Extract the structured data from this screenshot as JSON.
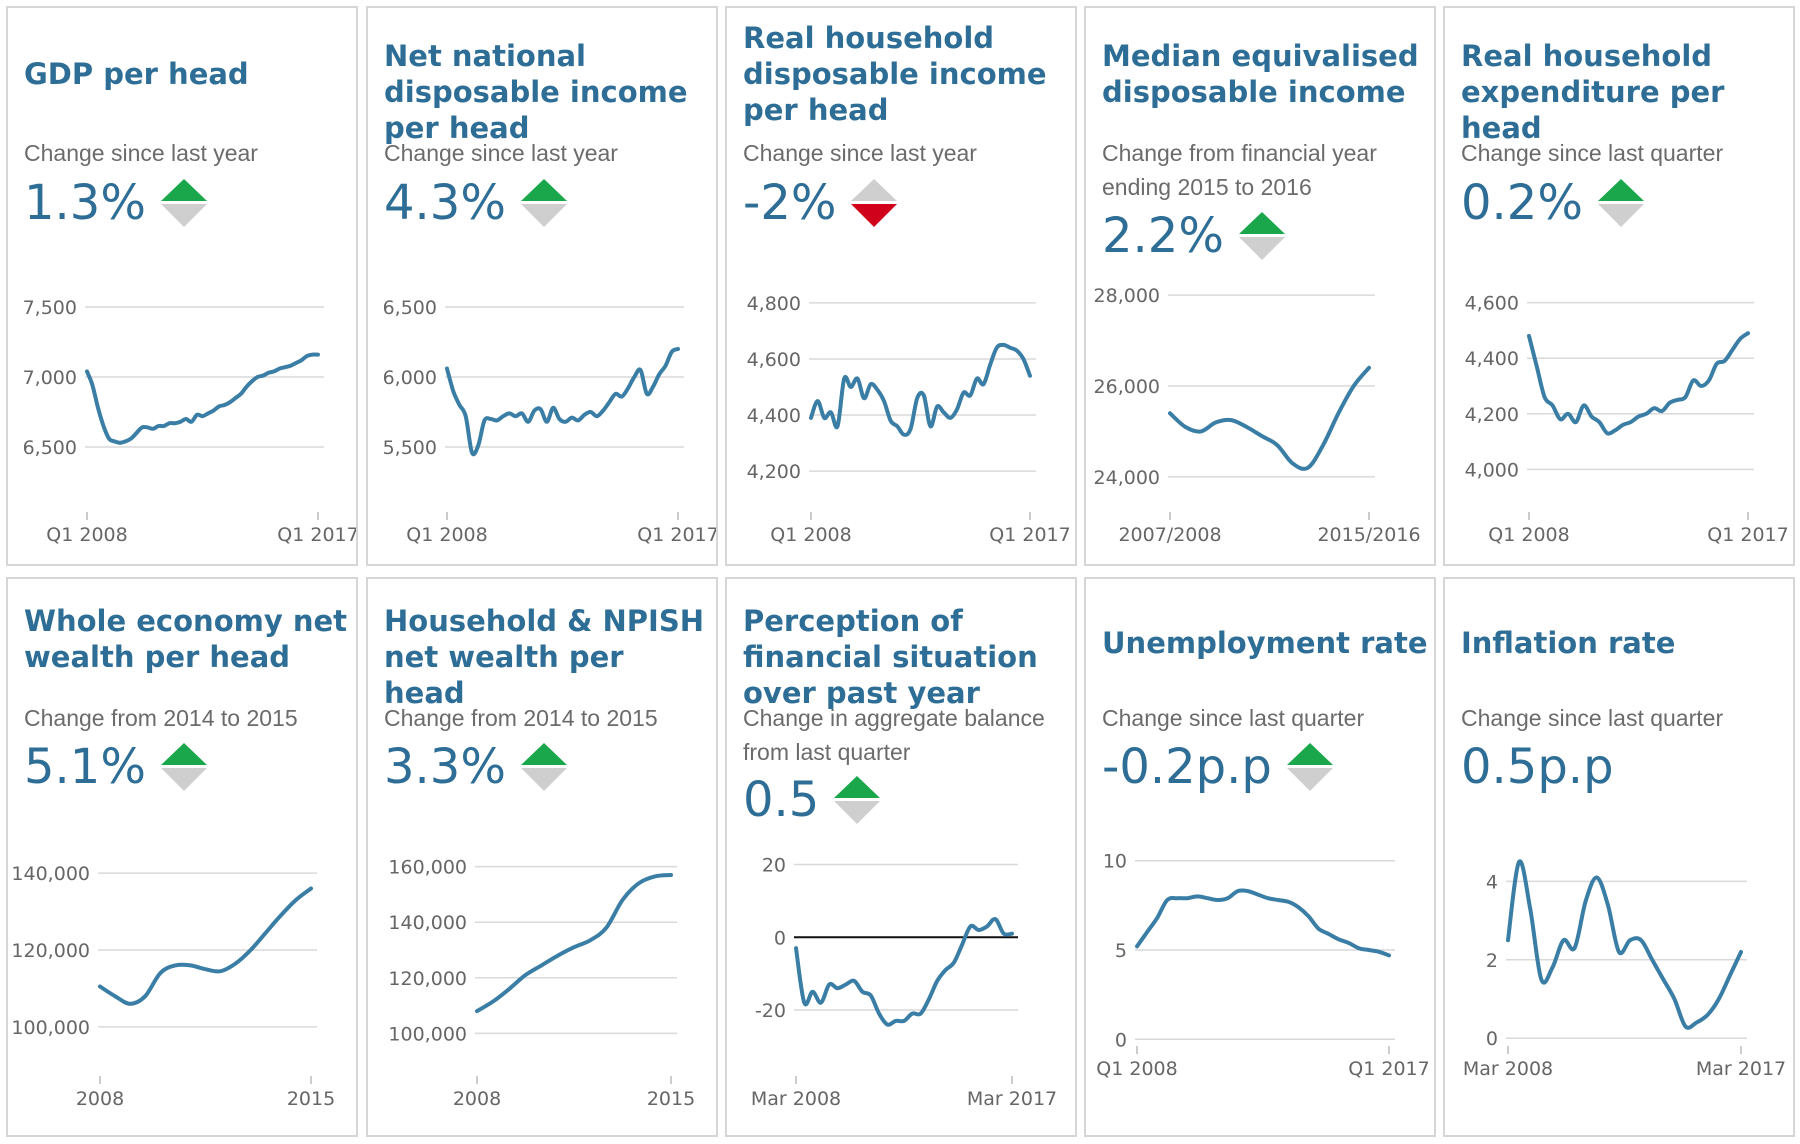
{
  "colors": {
    "title": "#2e6e96",
    "line": "#3a7ea6",
    "up": "#1aa64a",
    "down": "#d0021b",
    "neutral": "#cfcfcf",
    "grid": "#d9d9d9"
  },
  "tiles": [
    {
      "title": "GDP per head",
      "subtitle": "Change since last year",
      "value": "1.3%",
      "direction": "up",
      "chart_data": {
        "type": "line",
        "y_ticks": [
          "7,500",
          "7,000",
          "6,500"
        ],
        "y_tick_values": [
          7500,
          7000,
          6500
        ],
        "ylim": [
          6350,
          7650
        ],
        "x_ticks": [
          "Q1 2008",
          "Q1 2017"
        ],
        "values": [
          7040,
          6940,
          6780,
          6650,
          6560,
          6540,
          6530,
          6540,
          6560,
          6600,
          6640,
          6640,
          6630,
          6650,
          6650,
          6670,
          6670,
          6680,
          6700,
          6680,
          6730,
          6720,
          6740,
          6760,
          6790,
          6800,
          6820,
          6850,
          6880,
          6930,
          6970,
          7000,
          7010,
          7030,
          7040,
          7060,
          7070,
          7080,
          7100,
          7120,
          7150,
          7160,
          7160
        ]
      }
    },
    {
      "title": "Net national disposable income per head",
      "subtitle": "Change since last year",
      "value": "4.3%",
      "direction": "up",
      "chart_data": {
        "type": "line",
        "y_ticks": [
          "6,500",
          "6,000",
          "5,500"
        ],
        "y_tick_values": [
          6500,
          6000,
          5500
        ],
        "ylim": [
          5350,
          6650
        ],
        "x_ticks": [
          "Q1 2008",
          "Q1 2017"
        ],
        "values": [
          6060,
          5900,
          5800,
          5720,
          5460,
          5510,
          5690,
          5700,
          5690,
          5720,
          5740,
          5720,
          5740,
          5680,
          5760,
          5770,
          5680,
          5780,
          5700,
          5680,
          5710,
          5690,
          5730,
          5750,
          5720,
          5760,
          5820,
          5880,
          5860,
          5920,
          6000,
          6050,
          5880,
          5930,
          6020,
          6080,
          6180,
          6200
        ]
      }
    },
    {
      "title": "Real household disposable income per head",
      "subtitle": "Change since last year",
      "value": "-2%",
      "direction": "down",
      "chart_data": {
        "type": "line",
        "y_ticks": [
          "4,800",
          "4,600",
          "4,400",
          "4,200"
        ],
        "y_tick_values": [
          4800,
          4600,
          4400,
          4200
        ],
        "ylim": [
          4140,
          4860
        ],
        "x_ticks": [
          "Q1 2008",
          "Q1 2017"
        ],
        "values": [
          4390,
          4450,
          4390,
          4410,
          4360,
          4530,
          4500,
          4530,
          4460,
          4510,
          4490,
          4450,
          4380,
          4360,
          4330,
          4350,
          4460,
          4470,
          4360,
          4430,
          4410,
          4390,
          4420,
          4480,
          4470,
          4530,
          4510,
          4580,
          4640,
          4650,
          4640,
          4630,
          4600,
          4540
        ]
      }
    },
    {
      "title": "Median equivalised disposable income",
      "subtitle": "Change from financial year ending 2015 to 2016",
      "value": "2.2%",
      "direction": "up",
      "chart_data": {
        "type": "line",
        "y_ticks": [
          "28,000",
          "26,000",
          "24,000"
        ],
        "y_tick_values": [
          28000,
          26000,
          24000
        ],
        "ylim": [
          23800,
          28200
        ],
        "x_ticks": [
          "2007/2008",
          "2015/2016"
        ],
        "values": [
          25400,
          25100,
          25000,
          25200,
          25250,
          25100,
          24900,
          24700,
          24300,
          24200,
          24700,
          25400,
          26000,
          26400
        ]
      }
    },
    {
      "title": "Real household expenditure per head",
      "subtitle": "Change since last quarter",
      "value": "0.2%",
      "direction": "up",
      "chart_data": {
        "type": "line",
        "y_ticks": [
          "4,600",
          "4,400",
          "4,200",
          "4,000"
        ],
        "y_tick_values": [
          4600,
          4400,
          4200,
          4000
        ],
        "ylim": [
          3940,
          4660
        ],
        "x_ticks": [
          "Q1 2008",
          "Q1 2017"
        ],
        "values": [
          4480,
          4370,
          4260,
          4230,
          4180,
          4200,
          4170,
          4230,
          4190,
          4170,
          4130,
          4140,
          4160,
          4170,
          4190,
          4200,
          4220,
          4210,
          4240,
          4250,
          4260,
          4320,
          4300,
          4320,
          4380,
          4390,
          4430,
          4470,
          4490
        ]
      }
    },
    {
      "title": "Whole economy net wealth per head",
      "subtitle": "Change from 2014 to 2015",
      "value": "5.1%",
      "direction": "up",
      "chart_data": {
        "type": "line",
        "y_ticks": [
          "140,000",
          "120,000",
          "100,000"
        ],
        "y_tick_values": [
          140000,
          120000,
          100000
        ],
        "ylim": [
          94000,
          146000
        ],
        "x_ticks": [
          "2008",
          "2015"
        ],
        "values": [
          110500,
          108000,
          106000,
          108000,
          114000,
          116000,
          116000,
          115000,
          114500,
          116500,
          120000,
          124500,
          129000,
          133000,
          136000
        ]
      }
    },
    {
      "title": "Household & NPISH net wealth per head",
      "subtitle": "Change from 2014 to 2015",
      "value": "3.3%",
      "direction": "up",
      "chart_data": {
        "type": "line",
        "y_ticks": [
          "160,000",
          "140,000",
          "120,000",
          "100,000"
        ],
        "y_tick_values": [
          160000,
          140000,
          120000,
          100000
        ],
        "ylim": [
          94000,
          166000
        ],
        "x_ticks": [
          "2008",
          "2015"
        ],
        "values": [
          108000,
          111500,
          116000,
          121000,
          124500,
          128000,
          131000,
          133500,
          138000,
          148000,
          154000,
          156500,
          157000
        ]
      }
    },
    {
      "title": "Perception of financial situation over past year",
      "subtitle": "Change in aggregate balance from last quarter",
      "value": "0.5",
      "direction": "up",
      "chart_data": {
        "type": "line",
        "y_ticks": [
          "20",
          "0",
          "-20"
        ],
        "y_tick_values": [
          20,
          0,
          -20
        ],
        "ylim": [
          -31,
          24
        ],
        "x_ticks": [
          "Mar 2008",
          "Mar 2017"
        ],
        "values": [
          -3,
          -18,
          -15,
          -18,
          -13,
          -14,
          -13,
          -12,
          -15,
          -16,
          -21,
          -24,
          -23,
          -23,
          -21,
          -21,
          -17,
          -12,
          -9,
          -7,
          -2,
          3,
          2,
          3,
          5,
          1,
          1
        ]
      }
    },
    {
      "title": "Unemployment rate",
      "subtitle": "Change since last quarter",
      "value": "-0.2p.p",
      "direction": "up",
      "chart_data": {
        "type": "line",
        "y_ticks": [
          "10",
          "5",
          "0"
        ],
        "y_tick_values": [
          10,
          5,
          0
        ],
        "ylim": [
          -0.6,
          10.6
        ],
        "x_ticks": [
          "Q1 2008",
          "Q1 2017"
        ],
        "values": [
          5.2,
          6.0,
          6.8,
          7.8,
          7.9,
          7.9,
          8.0,
          7.9,
          7.8,
          7.9,
          8.3,
          8.3,
          8.1,
          7.9,
          7.8,
          7.7,
          7.4,
          6.9,
          6.2,
          5.9,
          5.6,
          5.4,
          5.1,
          5.0,
          4.9,
          4.7
        ]
      }
    },
    {
      "title": "Inflation rate",
      "subtitle": "Change since last quarter",
      "value": "0.5p.p",
      "direction": "none",
      "chart_data": {
        "type": "line",
        "y_ticks": [
          "4",
          "2",
          "0"
        ],
        "y_tick_values": [
          4,
          2,
          0
        ],
        "ylim": [
          -0.3,
          4.8
        ],
        "x_ticks": [
          "Mar 2008",
          "Mar 2017"
        ],
        "values": [
          2.5,
          4.5,
          3.3,
          1.5,
          1.8,
          2.5,
          2.3,
          3.5,
          4.1,
          3.4,
          2.2,
          2.5,
          2.5,
          2.0,
          1.5,
          1.0,
          0.3,
          0.4,
          0.6,
          1.0,
          1.6,
          2.2
        ]
      }
    }
  ]
}
